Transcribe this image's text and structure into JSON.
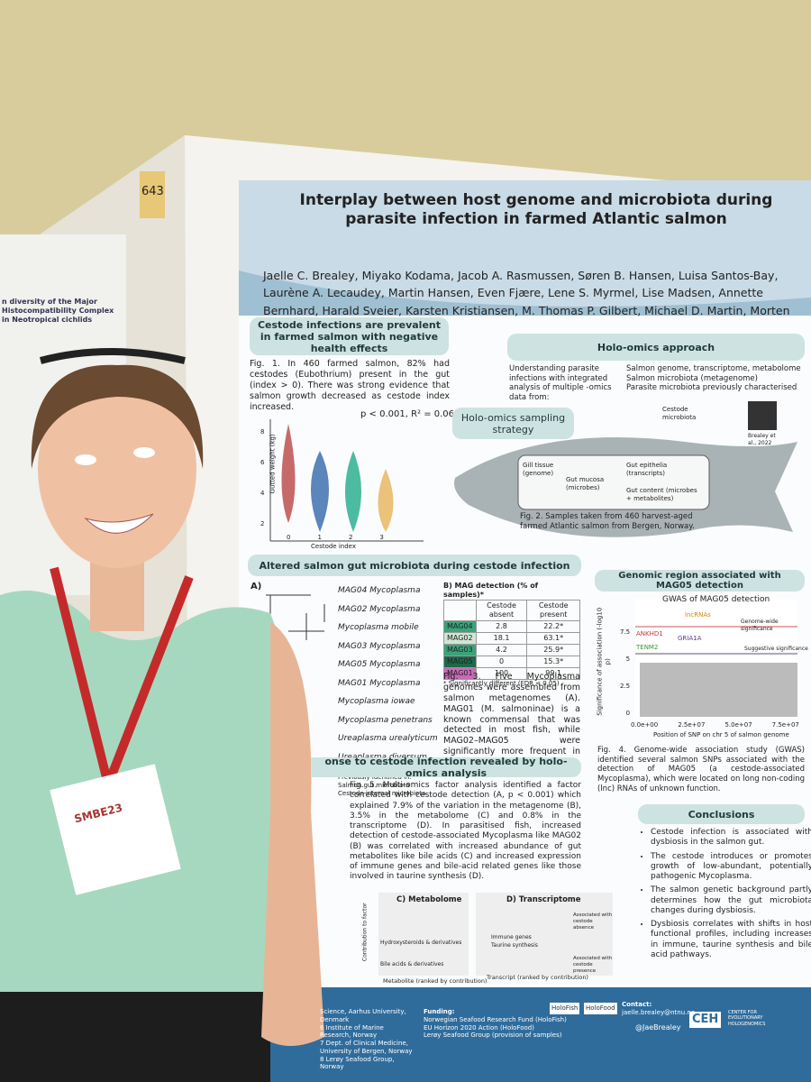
{
  "booth_number": "643",
  "side_poster": {
    "title": "n diversity of the Major Histocompatibility Complex in Neotropical cichlids"
  },
  "badge": {
    "event": "SMBE23"
  },
  "poster": {
    "title": "Interplay between host genome and microbiota during parasite infection in farmed Atlantic salmon",
    "authors": "Jaelle C. Brealey, Miyako Kodama, Jacob A. Rasmussen, Søren B. Hansen, Luisa Santos-Bay, Laurène A. Lecaudey, Martin Hansen, Even Fjære, Lene S. Myrmel, Lise Madsen, Annette Bernhard, Harald Sveier, Karsten Kristiansen, M. Thomas P. Gilbert, Michael D. Martin, Morten T. Limborg",
    "cestode": {
      "heading": "Cestode infections are prevalent in farmed salmon with negative health effects",
      "caption": "Fig. 1. In 460 farmed salmon, 82% had cestodes (Eubothrium) present in the gut (index > 0). There was strong evidence that salmon growth decreased as cestode index increased.",
      "stat": "p < 0.001, R² = 0.06",
      "y_label": "Gutted weight (kg)",
      "x_label": "Cestode index",
      "y_ticks": [
        "8",
        "6",
        "4",
        "2"
      ],
      "x_ticks": [
        "0",
        "1",
        "2",
        "3"
      ]
    },
    "holo": {
      "heading": "Holo-omics approach",
      "intro": "Understanding parasite infections with integrated analysis of multiple -omics data from:",
      "items": [
        "Salmon genome, transcriptome, metabolome",
        "Salmon microbiota (metagenome)",
        "Parasite microbiota previously characterised"
      ],
      "cestode_label": "Cestode microbiota",
      "reference": "Brealey et al., 2022",
      "sampling_heading": "Holo-omics sampling strategy",
      "samples": [
        "Gill tissue (genome)",
        "Gut mucosa (microbes)",
        "Gut epithelia (transcripts)",
        "Gut content (microbes + metabolites)"
      ],
      "caption": "Fig. 2. Samples taken from 460 harvest-aged farmed Atlantic salmon from Bergen, Norway."
    },
    "microbiota": {
      "heading": "Altered salmon gut microbiota during cestode infection",
      "panel_a": "A)",
      "tree": [
        "MAG04 Mycoplasma",
        "MAG02 Mycoplasma",
        "Mycoplasma mobile",
        "MAG03 Mycoplasma",
        "MAG05 Mycoplasma",
        "MAG01 Mycoplasma",
        "Mycoplasma iowae",
        "Mycoplasma penetrans",
        "Ureaplasma urealyticum",
        "Ureaplasma diversum"
      ],
      "legend_title": "Previously identified in:",
      "legend": [
        "Salmon gut microbiota",
        "Cestode internal microbiota"
      ],
      "table_title": "B) MAG detection (% of samples)*",
      "table_header": [
        "Cestode absent",
        "Cestode present"
      ],
      "table_rows": [
        [
          "MAG04",
          "2.8",
          "22.2*"
        ],
        [
          "MAG02",
          "18.1",
          "63.1*"
        ],
        [
          "MAG03",
          "4.2",
          "25.9*"
        ],
        [
          "MAG05",
          "0",
          "15.3*"
        ],
        [
          "MAG01",
          "100",
          "99.1"
        ]
      ],
      "table_note": "* Significantly different (FDR < 0.05)",
      "caption": "Fig. 3. Five Mycoplasma genomes were assembled from salmon metagenomes (A). MAG01 (M. salmoninae) is a known commensal that was detected in most fish, while MAG02–MAG05 were significantly more frequent in parasitised fish (B)."
    },
    "gwas": {
      "heading": "Genomic region associated with MAG05 detection",
      "plot_title": "GWAS of MAG05 detection",
      "genes": [
        "lncRNAs",
        "ANKHD1",
        "TENM2",
        "GRIA1A"
      ],
      "lines": [
        "Genome-wide significance",
        "Suggestive significance"
      ],
      "y_label": "Significance of association (-log10 p)",
      "y_ticks": [
        "7.5",
        "5",
        "2.5",
        "0"
      ],
      "x_ticks": [
        "0.0e+00",
        "2.5e+07",
        "5.0e+07",
        "7.5e+07"
      ],
      "x_label": "Position of SNP on chr 5 of salmon genome",
      "caption": "Fig. 4. Genome-wide association study (GWAS) identified several salmon SNPs associated with the detection of MAG05 (a cestode-associated Mycoplasma), which were located on long non-coding (lnc) RNAs of unknown function."
    },
    "response": {
      "heading": "onse to cestode infection revealed by holo-omics analysis",
      "caption": "Fig. 5. Multi-omics factor analysis identified a factor correlated with cestode detection (A, p < 0.001) which explained 7.9% of the variation in the metagenome (B), 3.5% in the metabolome (C) and 0.8% in the transcriptome (D). In parasitised fish, increased detection of cestode-associated Mycoplasma like MAG02 (B) was correlated with increased abundance of gut metabolites like bile acids (C) and increased expression of immune genes and bile-acid related genes like those involved in taurine synthesis (D).",
      "panel_c": "C) Metabolome",
      "panel_d": "D) Transcriptome",
      "metabolites": [
        "Hydroxysteroids & derivatives",
        "Bile acids & derivatives"
      ],
      "transcripts": [
        "Immune genes",
        "Taurine synthesis"
      ],
      "assoc_absence": "Associated with cestode absence",
      "assoc_presence": "Associated with cestode presence",
      "y_label": "Contribution to factor",
      "x_label_c": "Metabolite (ranked by contribution)",
      "x_label_d": "Transcript (ranked by contribution)"
    },
    "conclusions": {
      "heading": "Conclusions",
      "items": [
        "Cestode infection is associated with dysbiosis in the salmon gut.",
        "The cestode introduces or promotes growth of low-abundant, potentially pathogenic Mycoplasma.",
        "The salmon genetic background partly determines how the gut microbiota changes during dysbiosis.",
        "Dysbiosis correlates with shifts in host functional profiles, including increases in immune, taurine synthesis and bile acid pathways."
      ]
    },
    "footer": {
      "affiliations": [
        "Science, Aarhus University, Denmark",
        "6 Institute of Marine Research, Norway",
        "7 Dept. of Clinical Medicine, University of Bergen, Norway",
        "8 Lerøy Seafood Group, Norway"
      ],
      "funding_title": "Funding:",
      "funding": [
        "Norwegian Seafood Research Fund (HoloFish)",
        "EU Horizon 2020 Action (HoloFood)",
        "Lerøy Seafood Group (provision of samples)"
      ],
      "qr_labels": [
        "HoloFish",
        "HoloFood"
      ],
      "contact_title": "Contact:",
      "email": "jaelle.brealey@ntnu.no",
      "twitter": "@JaeBrealey",
      "ceh": "CEH",
      "ceh_name": "CENTER FOR EVOLUTIONARY HOLOGENOMICS"
    }
  }
}
